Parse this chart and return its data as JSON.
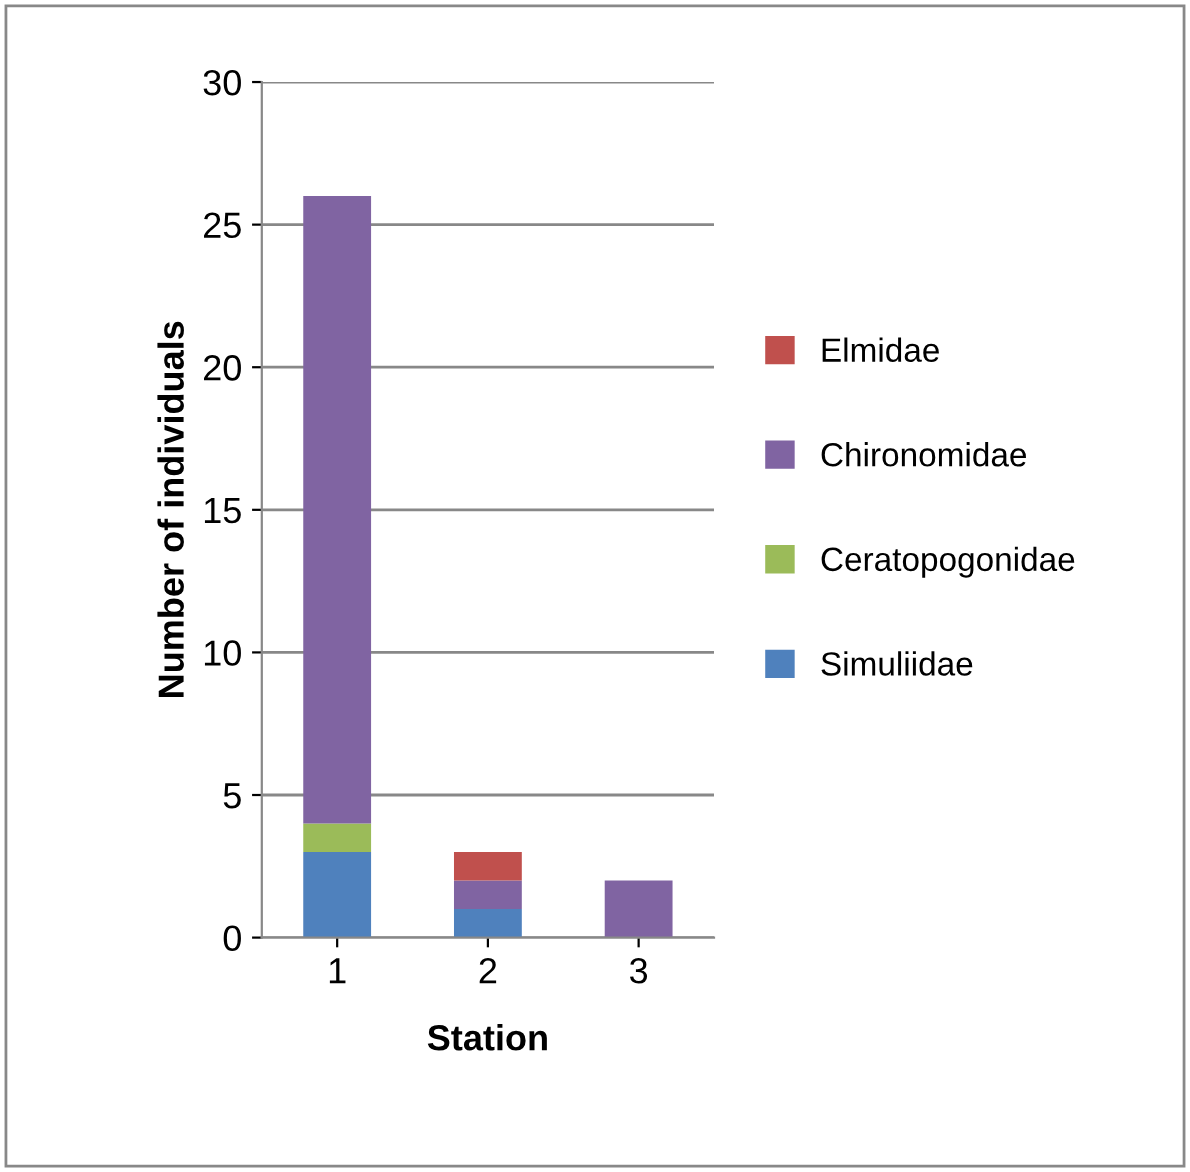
{
  "chart_data": {
    "type": "bar",
    "stacked": true,
    "xlabel": "Station",
    "ylabel": "Number of individuals",
    "categories": [
      "1",
      "2",
      "3"
    ],
    "series": [
      {
        "name": "Simuliidae",
        "color": "#4f81bd",
        "values": [
          3,
          1,
          0
        ]
      },
      {
        "name": "Ceratopogonidae",
        "color": "#9bbb59",
        "values": [
          1,
          0,
          0
        ]
      },
      {
        "name": "Chironomidae",
        "color": "#8064a2",
        "values": [
          22,
          1,
          2
        ]
      },
      {
        "name": "Elmidae",
        "color": "#c0504d",
        "values": [
          0,
          1,
          0
        ]
      }
    ],
    "ylim": [
      0,
      30
    ],
    "yticks": [
      0,
      5,
      10,
      15,
      20,
      25,
      30
    ],
    "grid": "y",
    "legend": "right"
  }
}
